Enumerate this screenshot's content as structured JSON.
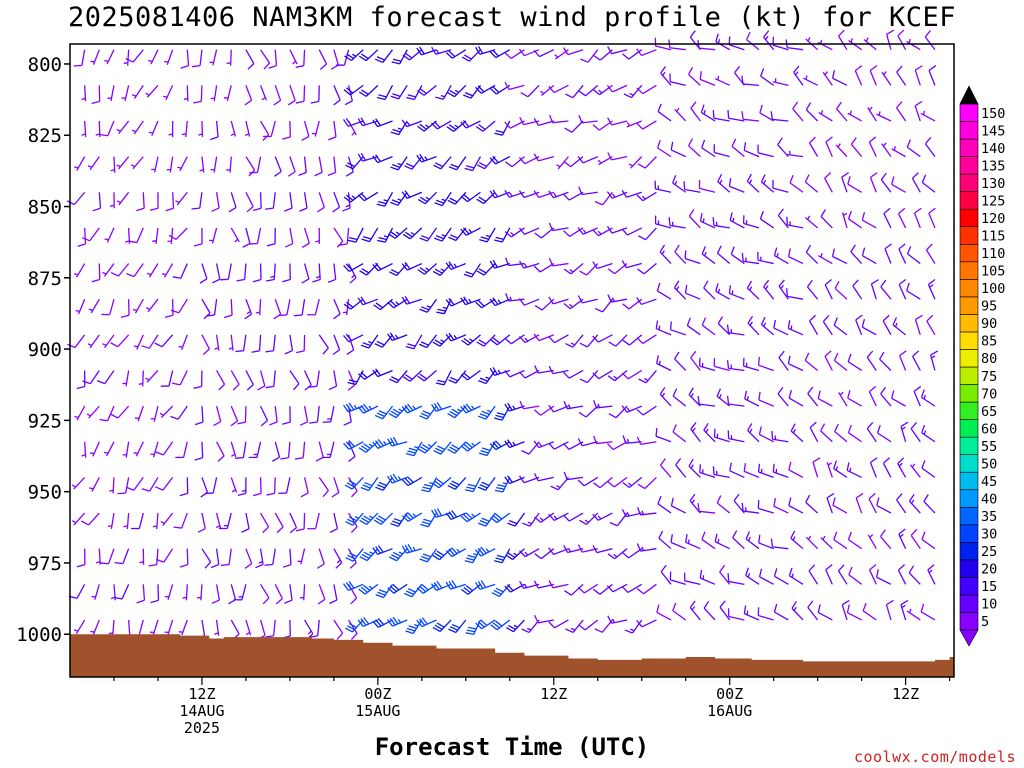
{
  "chart_data": {
    "type": "wind_barb_profile",
    "title": "2025081406 NAM3KM forecast wind profile (kt) for KCEF",
    "xlabel": "Forecast Time (UTC)",
    "ylabel": "",
    "credit": "coolwx.com/models",
    "y_axis": {
      "ticks": [
        800,
        825,
        850,
        875,
        900,
        925,
        950,
        975,
        1000
      ],
      "tick_labels": [
        "800",
        "825",
        "850",
        "875",
        "900",
        "925",
        "950",
        "975",
        "1000"
      ],
      "range": [
        793,
        1015
      ],
      "units": "hPa"
    },
    "x_axis": {
      "range_hours": [
        -3,
        48
      ],
      "ticks": [
        {
          "hour": 6,
          "lines": [
            "12Z",
            "14AUG",
            "2025"
          ]
        },
        {
          "hour": 18,
          "lines": [
            "00Z",
            "15AUG"
          ]
        },
        {
          "hour": 30,
          "lines": [
            "12Z"
          ]
        },
        {
          "hour": 42,
          "lines": [
            "00Z",
            "16AUG"
          ]
        },
        {
          "hour": 54,
          "lines": [
            "12Z"
          ]
        }
      ]
    },
    "colorbar": {
      "labels": [
        "5",
        "10",
        "15",
        "20",
        "25",
        "30",
        "35",
        "40",
        "45",
        "50",
        "55",
        "60",
        "65",
        "70",
        "75",
        "80",
        "85",
        "90",
        "95",
        "100",
        "105",
        "110",
        "115",
        "120",
        "125",
        "130",
        "135",
        "140",
        "145",
        "150"
      ],
      "colors": [
        "#8800ff",
        "#6600ff",
        "#4400ff",
        "#2200ee",
        "#0022ee",
        "#0044ff",
        "#0066ff",
        "#0099ff",
        "#00bbee",
        "#00ddcc",
        "#00ee99",
        "#00ee55",
        "#33ee22",
        "#77ee00",
        "#bbee00",
        "#eeee00",
        "#ffdd00",
        "#ffbb00",
        "#ff9900",
        "#ff8800",
        "#ff7700",
        "#ff5500",
        "#ff3300",
        "#ff0000",
        "#ff0044",
        "#ff0077",
        "#ff0099",
        "#ff00bb",
        "#ff00dd",
        "#ff00ff"
      ],
      "bottom_arrow": "#8800ff",
      "top_arrow": "#000000"
    },
    "terrain_color": "#a0522d",
    "surface_pressure": [
      {
        "hour": -3,
        "p": 1000
      },
      {
        "hour": 3,
        "p": 1000
      },
      {
        "hour": 4.5,
        "p": 1000.5
      },
      {
        "hour": 6.5,
        "p": 1001.5
      },
      {
        "hour": 7.5,
        "p": 1001
      },
      {
        "hour": 12,
        "p": 1001
      },
      {
        "hour": 13.5,
        "p": 1001.5
      },
      {
        "hour": 15,
        "p": 1002
      },
      {
        "hour": 17,
        "p": 1003
      },
      {
        "hour": 19,
        "p": 1004
      },
      {
        "hour": 22,
        "p": 1005
      },
      {
        "hour": 26,
        "p": 1006.5
      },
      {
        "hour": 28,
        "p": 1007.5
      },
      {
        "hour": 31,
        "p": 1008.5
      },
      {
        "hour": 33,
        "p": 1009
      },
      {
        "hour": 36,
        "p": 1008.5
      },
      {
        "hour": 39,
        "p": 1008
      },
      {
        "hour": 41,
        "p": 1008.5
      },
      {
        "hour": 43.5,
        "p": 1009
      },
      {
        "hour": 47,
        "p": 1009.5
      },
      {
        "hour": 50,
        "p": 1009.5
      },
      {
        "hour": 53,
        "p": 1009.5
      },
      {
        "hour": 56,
        "p": 1009
      },
      {
        "hour": 57,
        "p": 1008
      }
    ],
    "wind_field_regimes": [
      {
        "hours": [
          -3,
          6
        ],
        "direction_deg": 200,
        "speed_kt": 8
      },
      {
        "hours": [
          6,
          17
        ],
        "direction_deg": 170,
        "speed_kt": 10
      },
      {
        "hours": [
          17,
          28
        ],
        "direction_deg": 230,
        "speed_kt": 22
      },
      {
        "hours": [
          28,
          38
        ],
        "direction_deg": 240,
        "speed_kt": 12
      },
      {
        "hours": [
          38,
          48
        ],
        "direction_deg": 300,
        "speed_kt": 12
      },
      {
        "hours": [
          48,
          57
        ],
        "direction_deg": 320,
        "speed_kt": 10
      }
    ]
  }
}
